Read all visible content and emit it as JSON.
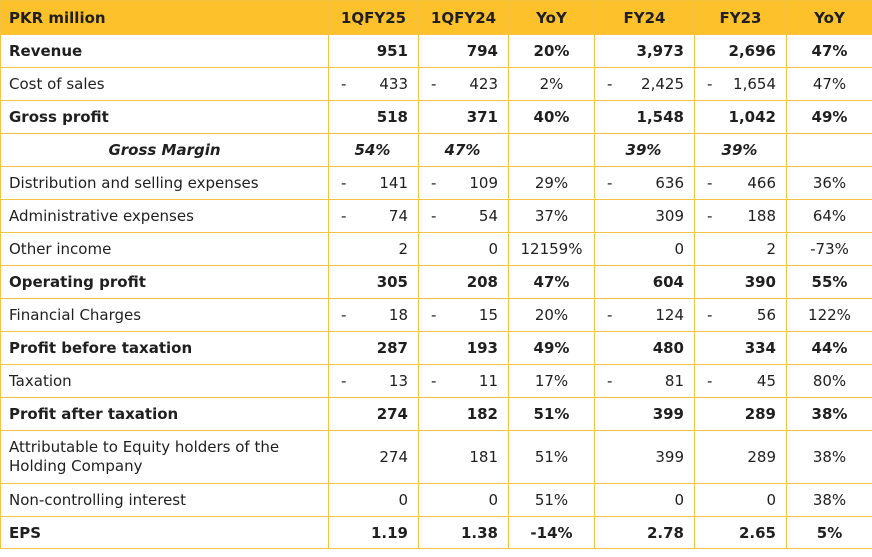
{
  "header": [
    "PKR million",
    "1QFY25",
    "1QFY24",
    "YoY",
    "FY24",
    "FY23",
    "YoY"
  ],
  "rows": [
    {
      "label": "Revenue",
      "style": "bold",
      "v": [
        [
          "",
          "951"
        ],
        [
          "",
          "794"
        ],
        [
          "",
          "20%"
        ],
        [
          "",
          "3,973"
        ],
        [
          "",
          "2,696"
        ],
        [
          "",
          "47%"
        ]
      ]
    },
    {
      "label": "Cost of sales",
      "style": "normal",
      "v": [
        [
          "-",
          "433"
        ],
        [
          "-",
          "423"
        ],
        [
          "",
          "2%"
        ],
        [
          "-",
          "2,425"
        ],
        [
          "-",
          "1,654"
        ],
        [
          "",
          "47%"
        ]
      ]
    },
    {
      "label": "Gross profit",
      "style": "bold",
      "v": [
        [
          "",
          "518"
        ],
        [
          "",
          "371"
        ],
        [
          "",
          "40%"
        ],
        [
          "",
          "1,548"
        ],
        [
          "",
          "1,042"
        ],
        [
          "",
          "49%"
        ]
      ]
    },
    {
      "label": "Gross Margin",
      "style": "margin",
      "v": [
        [
          "",
          "54%"
        ],
        [
          "",
          "47%"
        ],
        [
          "",
          ""
        ],
        [
          "",
          "39%"
        ],
        [
          "",
          "39%"
        ],
        [
          "",
          ""
        ]
      ]
    },
    {
      "label": "Distribution and selling expenses",
      "style": "normal",
      "v": [
        [
          "-",
          "141"
        ],
        [
          "-",
          "109"
        ],
        [
          "",
          "29%"
        ],
        [
          "-",
          "636"
        ],
        [
          "-",
          "466"
        ],
        [
          "",
          "36%"
        ]
      ]
    },
    {
      "label": "Administrative expenses",
      "style": "normal",
      "v": [
        [
          "-",
          "74"
        ],
        [
          "-",
          "54"
        ],
        [
          "",
          "37%"
        ],
        [
          "",
          "309"
        ],
        [
          "-",
          "188"
        ],
        [
          "",
          "64%"
        ]
      ]
    },
    {
      "label": "Other income",
      "style": "normal",
      "v": [
        [
          "",
          "2"
        ],
        [
          "",
          "0"
        ],
        [
          "",
          "12159%"
        ],
        [
          "",
          "0"
        ],
        [
          "",
          "2"
        ],
        [
          "",
          "-73%"
        ]
      ]
    },
    {
      "label": "Operating profit",
      "style": "bold",
      "v": [
        [
          "",
          "305"
        ],
        [
          "",
          "208"
        ],
        [
          "",
          "47%"
        ],
        [
          "",
          "604"
        ],
        [
          "",
          "390"
        ],
        [
          "",
          "55%"
        ]
      ]
    },
    {
      "label": "Financial Charges",
      "style": "normal",
      "v": [
        [
          "-",
          "18"
        ],
        [
          "-",
          "15"
        ],
        [
          "",
          "20%"
        ],
        [
          "-",
          "124"
        ],
        [
          "-",
          "56"
        ],
        [
          "",
          "122%"
        ]
      ]
    },
    {
      "label": "Profit before taxation",
      "style": "bold",
      "v": [
        [
          "",
          "287"
        ],
        [
          "",
          "193"
        ],
        [
          "",
          "49%"
        ],
        [
          "",
          "480"
        ],
        [
          "",
          "334"
        ],
        [
          "",
          "44%"
        ]
      ]
    },
    {
      "label": "Taxation",
      "style": "normal",
      "v": [
        [
          "-",
          "13"
        ],
        [
          "-",
          "11"
        ],
        [
          "",
          "17%"
        ],
        [
          "-",
          "81"
        ],
        [
          "-",
          "45"
        ],
        [
          "",
          "80%"
        ]
      ]
    },
    {
      "label": "Profit after taxation",
      "style": "bold",
      "v": [
        [
          "",
          "274"
        ],
        [
          "",
          "182"
        ],
        [
          "",
          "51%"
        ],
        [
          "",
          "399"
        ],
        [
          "",
          "289"
        ],
        [
          "",
          "38%"
        ]
      ]
    },
    {
      "label": "Attributable to Equity holders of the Holding Company",
      "style": "tall",
      "v": [
        [
          "",
          "274"
        ],
        [
          "",
          "181"
        ],
        [
          "",
          "51%"
        ],
        [
          "",
          "399"
        ],
        [
          "",
          "289"
        ],
        [
          "",
          "38%"
        ]
      ]
    },
    {
      "label": "Non-controlling interest",
      "style": "normal",
      "v": [
        [
          "",
          "0"
        ],
        [
          "",
          "0"
        ],
        [
          "",
          "51%"
        ],
        [
          "",
          "0"
        ],
        [
          "",
          "0"
        ],
        [
          "",
          "38%"
        ]
      ]
    },
    {
      "label": "EPS",
      "style": "bold last",
      "v": [
        [
          "",
          "1.19"
        ],
        [
          "",
          "1.38"
        ],
        [
          "",
          "-14%"
        ],
        [
          "",
          "2.78"
        ],
        [
          "",
          "2.65"
        ],
        [
          "",
          "5%"
        ]
      ]
    }
  ],
  "colors": {
    "header_bg": "#fdc12b",
    "grid": "#f5c242",
    "text": "#1f1f1f"
  }
}
